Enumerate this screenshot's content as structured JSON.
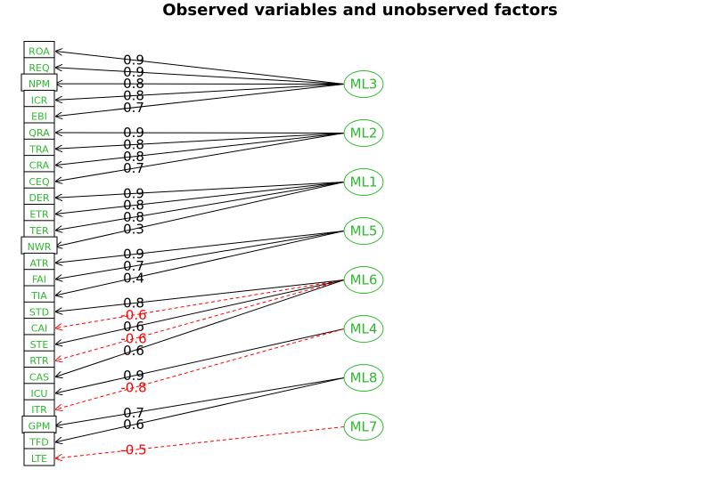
{
  "title": "Observed variables and unobserved factors",
  "colors": {
    "variable_text": "#2db92d",
    "factor_text": "#2db92d",
    "factor_outline": "#2db92d",
    "positive_path": "#000000",
    "negative_path": "#ff0000",
    "box_outline": "#000000"
  },
  "variables": [
    "ROA",
    "REQ",
    "NPM",
    "ICR",
    "EBI",
    "QRA",
    "TRA",
    "CRA",
    "CEQ",
    "DER",
    "ETR",
    "TER",
    "NWR",
    "ATR",
    "FAI",
    "TIA",
    "STD",
    "CAI",
    "STE",
    "RTR",
    "CAS",
    "ICU",
    "ITR",
    "GPM",
    "TFD",
    "LTE"
  ],
  "factors": [
    "ML3",
    "ML2",
    "ML1",
    "ML5",
    "ML6",
    "ML4",
    "ML8",
    "ML7"
  ],
  "loadings": [
    {
      "factor": "ML3",
      "variable": "ROA",
      "label": "0.9"
    },
    {
      "factor": "ML3",
      "variable": "REQ",
      "label": "0.9"
    },
    {
      "factor": "ML3",
      "variable": "NPM",
      "label": "0.8"
    },
    {
      "factor": "ML3",
      "variable": "ICR",
      "label": "0.8"
    },
    {
      "factor": "ML3",
      "variable": "EBI",
      "label": "0.7"
    },
    {
      "factor": "ML2",
      "variable": "QRA",
      "label": "0.9"
    },
    {
      "factor": "ML2",
      "variable": "TRA",
      "label": "0.8"
    },
    {
      "factor": "ML2",
      "variable": "CRA",
      "label": "0.8"
    },
    {
      "factor": "ML2",
      "variable": "CEQ",
      "label": "0.7"
    },
    {
      "factor": "ML1",
      "variable": "DER",
      "label": "0.9"
    },
    {
      "factor": "ML1",
      "variable": "ETR",
      "label": "0.8"
    },
    {
      "factor": "ML1",
      "variable": "TER",
      "label": "0.8"
    },
    {
      "factor": "ML1",
      "variable": "NWR",
      "label": "0.3"
    },
    {
      "factor": "ML5",
      "variable": "ATR",
      "label": "0.9"
    },
    {
      "factor": "ML5",
      "variable": "FAI",
      "label": "0.7"
    },
    {
      "factor": "ML5",
      "variable": "TIA",
      "label": "0.4"
    },
    {
      "factor": "ML6",
      "variable": "STD",
      "label": "0.8"
    },
    {
      "factor": "ML6",
      "variable": "CAI",
      "label": "-0.6"
    },
    {
      "factor": "ML6",
      "variable": "STE",
      "label": "0.6"
    },
    {
      "factor": "ML6",
      "variable": "RTR",
      "label": "-0.6"
    },
    {
      "factor": "ML6",
      "variable": "CAS",
      "label": "0.6"
    },
    {
      "factor": "ML4",
      "variable": "ICU",
      "label": "0.9"
    },
    {
      "factor": "ML4",
      "variable": "ITR",
      "label": "-0.8"
    },
    {
      "factor": "ML8",
      "variable": "GPM",
      "label": "0.7"
    },
    {
      "factor": "ML8",
      "variable": "TFD",
      "label": "0.6"
    },
    {
      "factor": "ML7",
      "variable": "LTE",
      "label": "-0.5"
    }
  ]
}
